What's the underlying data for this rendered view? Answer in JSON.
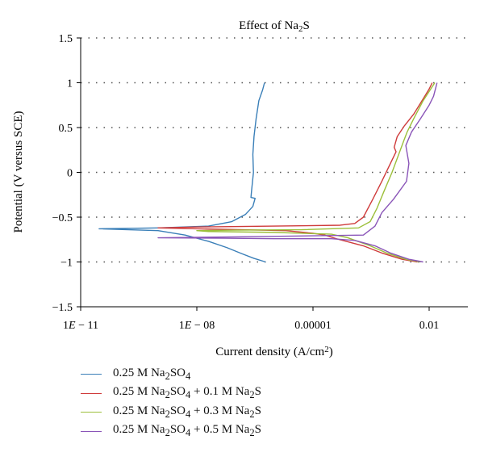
{
  "chart_data": {
    "type": "line",
    "title": "Effect of Na<sub>2</sub>S",
    "xlabel": "Current density (A/cm<sup>2</sup>)",
    "ylabel": "Potential (V versus SCE)",
    "x_scale": "log",
    "xlim": [
      1e-11,
      0.1
    ],
    "ylim": [
      -1.5,
      1.5
    ],
    "xticks": [
      {
        "value": 1e-11,
        "label": "1<tspan font-style=\"italic\">E</tspan> − 11"
      },
      {
        "value": 1e-08,
        "label": "1<tspan font-style=\"italic\">E</tspan> − 08"
      },
      {
        "value": 1e-05,
        "label": "0.00001"
      },
      {
        "value": 0.01,
        "label": "0.01"
      }
    ],
    "yticks": [
      {
        "value": 1.5,
        "label": "1.5"
      },
      {
        "value": 1,
        "label": "1"
      },
      {
        "value": 0.5,
        "label": "0.5"
      },
      {
        "value": 0,
        "label": "0"
      },
      {
        "value": -0.5,
        "label": "−0.5"
      },
      {
        "value": -1,
        "label": "−1"
      },
      {
        "value": -1.5,
        "label": "−1.5"
      }
    ],
    "grid": {
      "horizontal": "dotted",
      "vertical": false
    },
    "legend_position": "bottom-left",
    "series": [
      {
        "name": "0.25 M Na<sub>2</sub>SO<sub>4</sub>",
        "color": "#3a7fb8",
        "points": [
          [
            6e-07,
            -1.0
          ],
          [
            3e-07,
            -0.96
          ],
          [
            1.5e-07,
            -0.91
          ],
          [
            6e-08,
            -0.84
          ],
          [
            2e-08,
            -0.77
          ],
          [
            5e-09,
            -0.7
          ],
          [
            1e-09,
            -0.65
          ],
          [
            3e-11,
            -0.63
          ],
          [
            1e-09,
            -0.62
          ],
          [
            2e-08,
            -0.6
          ],
          [
            8e-08,
            -0.55
          ],
          [
            1.8e-07,
            -0.47
          ],
          [
            2.8e-07,
            -0.38
          ],
          [
            3.2e-07,
            -0.29
          ],
          [
            2.5e-07,
            -0.28
          ],
          [
            2.6e-07,
            -0.2
          ],
          [
            2.9e-07,
            0.0
          ],
          [
            2.8e-07,
            0.2
          ],
          [
            3e-07,
            0.4
          ],
          [
            3.4e-07,
            0.6
          ],
          [
            4e-07,
            0.8
          ],
          [
            5e-07,
            0.92
          ],
          [
            5.6e-07,
            1.0
          ]
        ]
      },
      {
        "name": "0.25 M Na<sub>2</sub>SO<sub>4</sub> + 0.1 M Na<sub>2</sub>S",
        "color": "#cf3b3b",
        "points": [
          [
            0.005,
            -1.0
          ],
          [
            0.002,
            -0.97
          ],
          [
            0.0006,
            -0.9
          ],
          [
            0.0002,
            -0.82
          ],
          [
            4e-05,
            -0.74
          ],
          [
            2e-05,
            -0.7
          ],
          [
            1e-05,
            -0.68
          ],
          [
            2e-06,
            -0.65
          ],
          [
            1e-08,
            -0.63
          ],
          [
            1e-09,
            -0.62
          ],
          [
            1e-08,
            -0.61
          ],
          [
            1e-06,
            -0.6
          ],
          [
            5e-05,
            -0.59
          ],
          [
            0.00012,
            -0.57
          ],
          [
            0.0002,
            -0.5
          ],
          [
            0.00035,
            -0.3
          ],
          [
            0.0006,
            -0.1
          ],
          [
            0.001,
            0.1
          ],
          [
            0.0014,
            0.23
          ],
          [
            0.00125,
            0.28
          ],
          [
            0.0015,
            0.4
          ],
          [
            0.0023,
            0.52
          ],
          [
            0.004,
            0.65
          ],
          [
            0.007,
            0.82
          ],
          [
            0.01,
            0.93
          ],
          [
            0.012,
            1.0
          ]
        ]
      },
      {
        "name": "0.25 M Na<sub>2</sub>SO<sub>4</sub> + 0.3 M Na<sub>2</sub>S",
        "color": "#9cbf3a",
        "points": [
          [
            0.006,
            -1.0
          ],
          [
            0.0025,
            -0.97
          ],
          [
            0.0008,
            -0.9
          ],
          [
            0.0003,
            -0.82
          ],
          [
            8e-05,
            -0.73
          ],
          [
            3e-05,
            -0.69
          ],
          [
            1e-06,
            -0.67
          ],
          [
            2e-08,
            -0.66
          ],
          [
            1e-08,
            -0.65
          ],
          [
            1e-07,
            -0.645
          ],
          [
            5e-06,
            -0.64
          ],
          [
            0.00015,
            -0.62
          ],
          [
            0.0003,
            -0.55
          ],
          [
            0.00045,
            -0.4
          ],
          [
            0.0007,
            -0.2
          ],
          [
            0.0011,
            0.0
          ],
          [
            0.0017,
            0.22
          ],
          [
            0.0022,
            0.35
          ],
          [
            0.0027,
            0.45
          ],
          [
            0.004,
            0.6
          ],
          [
            0.007,
            0.8
          ],
          [
            0.011,
            0.93
          ],
          [
            0.014,
            1.0
          ]
        ]
      },
      {
        "name": "0.25 M Na<sub>2</sub>SO<sub>4</sub> + 0.5 M Na<sub>2</sub>S",
        "color": "#8a55b8",
        "points": [
          [
            0.007,
            -1.0
          ],
          [
            0.003,
            -0.97
          ],
          [
            0.001,
            -0.9
          ],
          [
            0.0004,
            -0.82
          ],
          [
            0.00012,
            -0.76
          ],
          [
            3e-05,
            -0.74
          ],
          [
            1e-06,
            -0.74
          ],
          [
            5e-08,
            -0.735
          ],
          [
            1e-09,
            -0.73
          ],
          [
            1e-07,
            -0.72
          ],
          [
            5e-06,
            -0.71
          ],
          [
            0.0002,
            -0.7
          ],
          [
            0.0004,
            -0.6
          ],
          [
            0.0006,
            -0.45
          ],
          [
            0.0012,
            -0.3
          ],
          [
            0.0026,
            -0.1
          ],
          [
            0.003,
            0.1
          ],
          [
            0.0025,
            0.3
          ],
          [
            0.0035,
            0.45
          ],
          [
            0.006,
            0.6
          ],
          [
            0.01,
            0.75
          ],
          [
            0.013,
            0.85
          ],
          [
            0.016,
            1.0
          ]
        ]
      }
    ]
  }
}
